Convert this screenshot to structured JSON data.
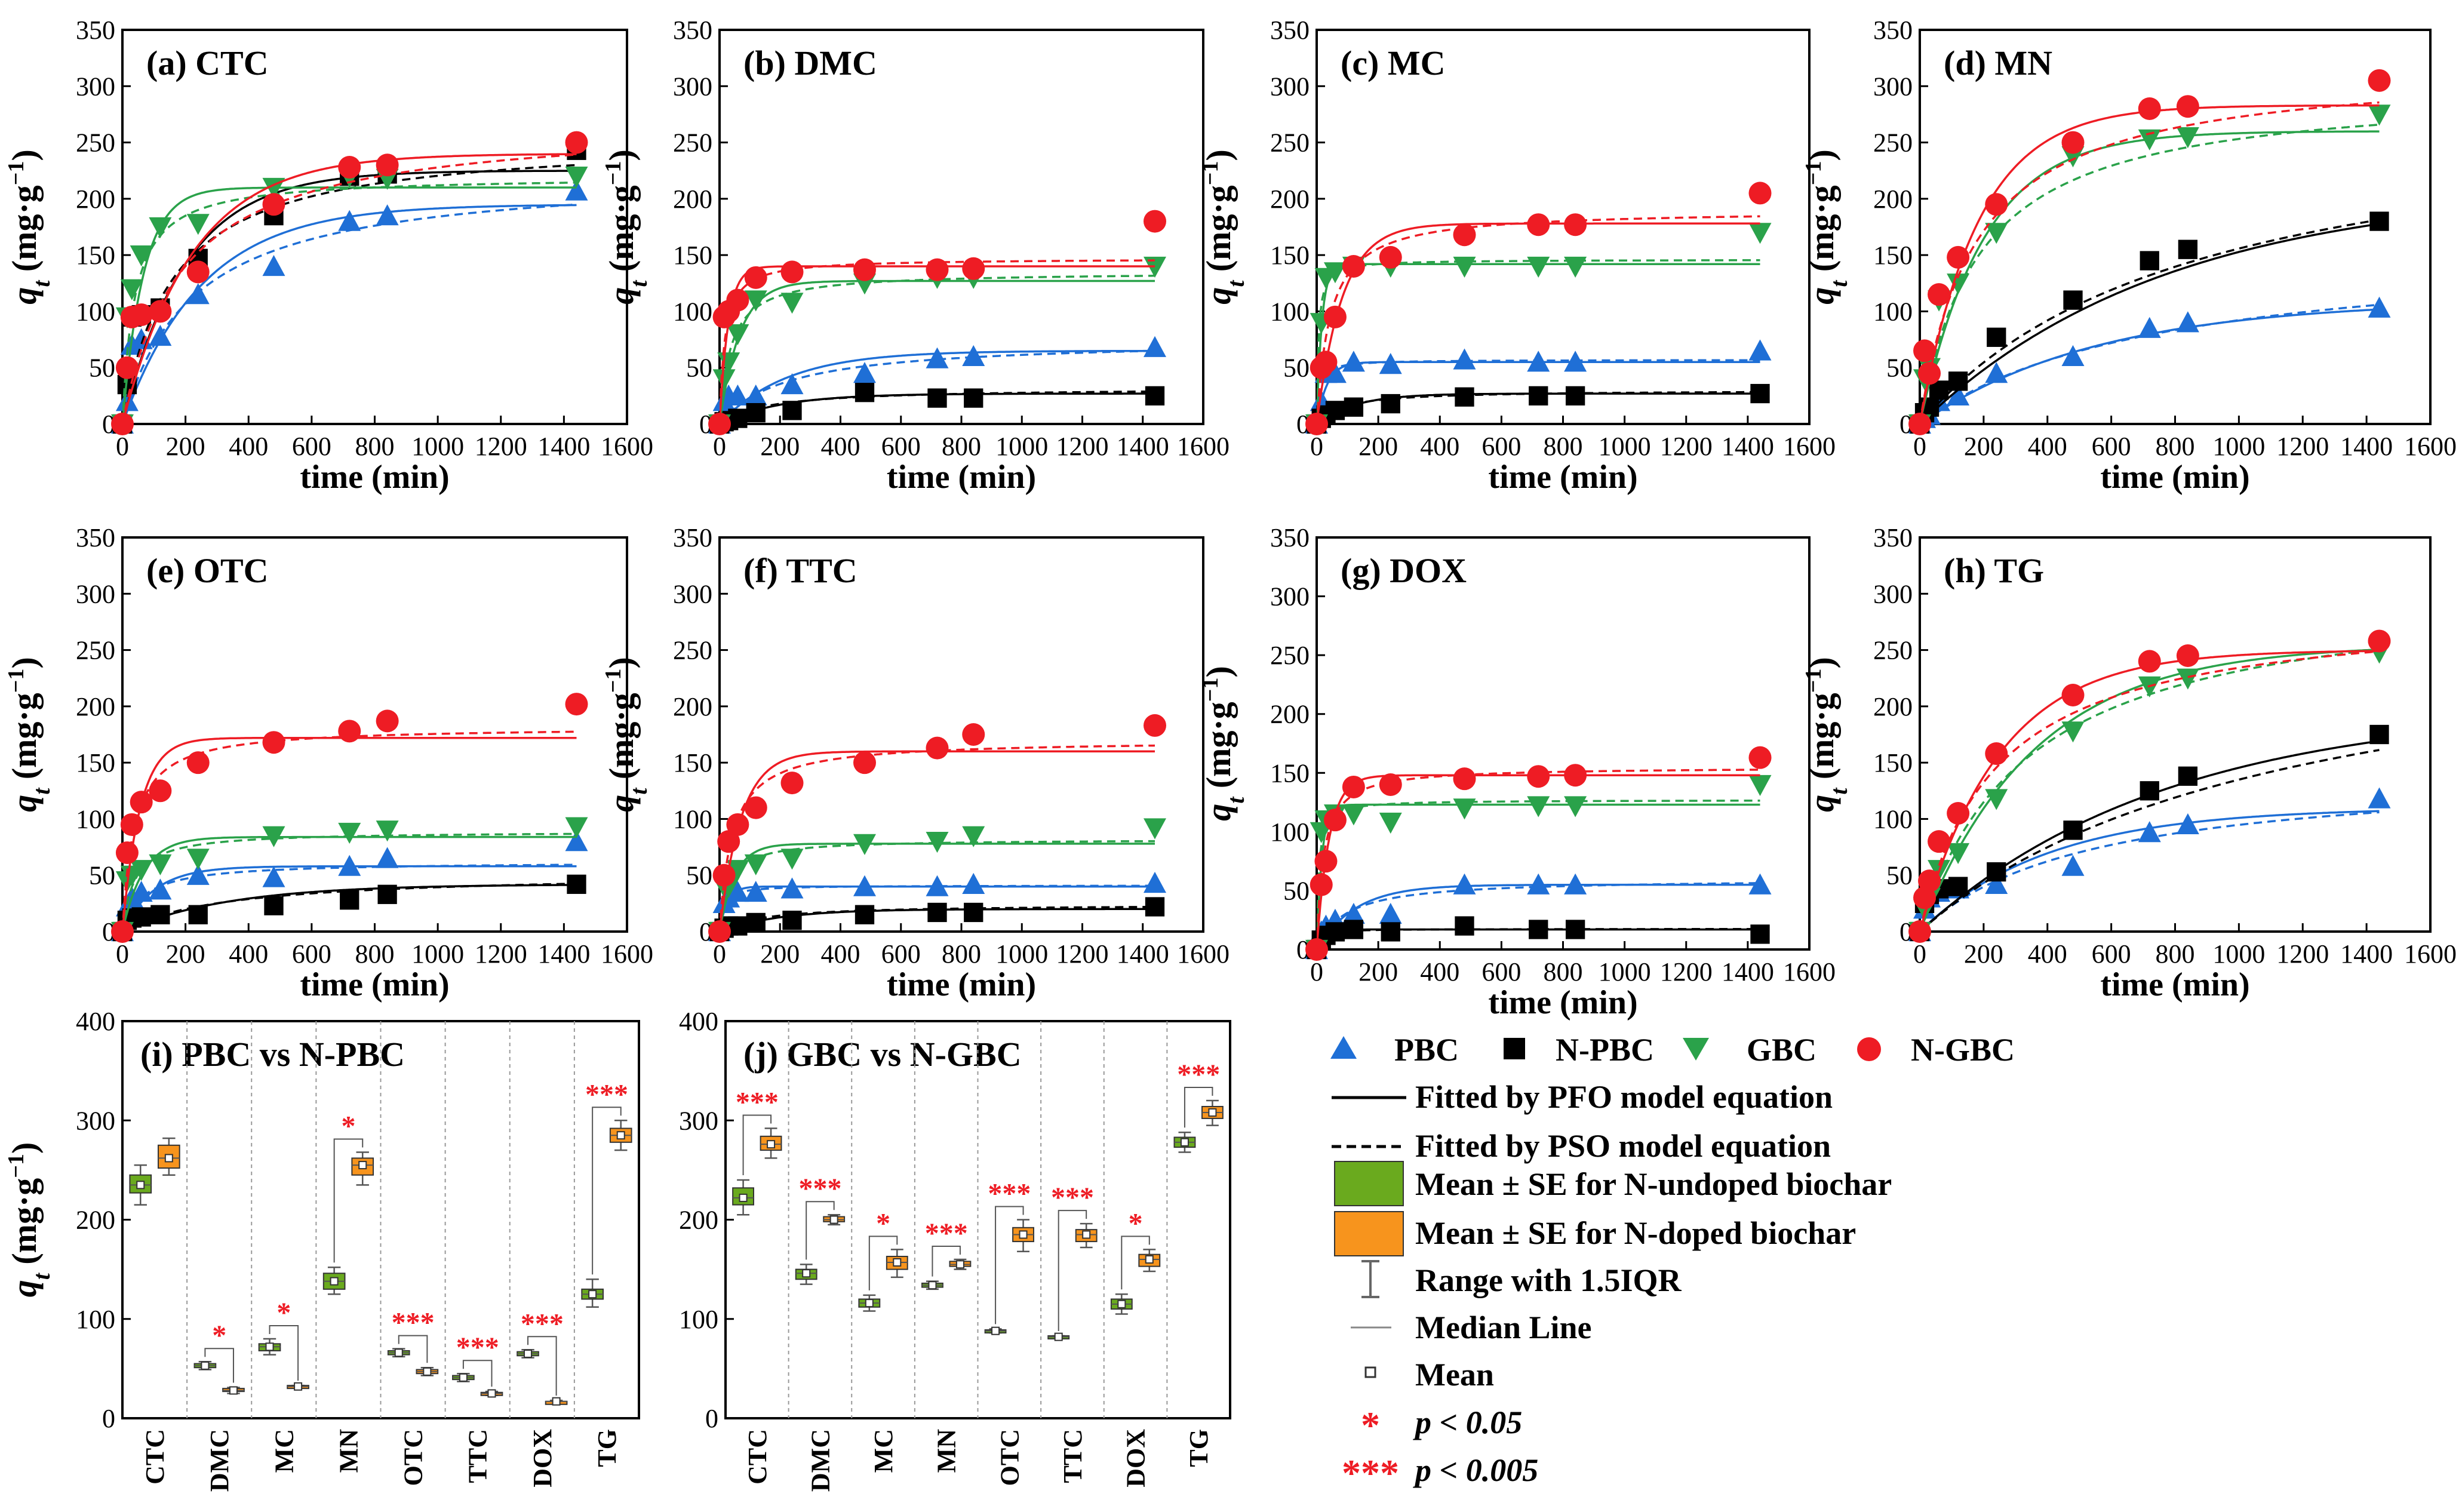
{
  "colors": {
    "PBC": "#1f6fd6",
    "N-PBC": "#000000",
    "GBC": "#2aa24a",
    "N-GBC": "#ee1c24",
    "box_undoped": "#6aaa1e",
    "box_doped": "#f7941d",
    "sig": "#ee1c24"
  },
  "kinetic": {
    "time": [
      0,
      15,
      30,
      60,
      120,
      240,
      480,
      720,
      840,
      1440
    ],
    "xlabel": "time (min)",
    "ylabel": "q",
    "ylabel_sub": "t",
    "ylabel_unit": "(mg·g",
    "ylabel_sup": "−1",
    "ylabel_close": ")",
    "xticks": [
      "0",
      "200",
      "400",
      "600",
      "800",
      "1000",
      "1200",
      "1400",
      "1600"
    ],
    "yticks": [
      "0",
      "50",
      "100",
      "150",
      "200",
      "250",
      "300",
      "350"
    ]
  },
  "chart_data": [
    {
      "type": "scatter",
      "title": "(a) CTC",
      "xlim": [
        0,
        1600
      ],
      "ylim": [
        0,
        350
      ],
      "series": [
        {
          "name": "PBC",
          "values": [
            0,
            20,
            70,
            75,
            78,
            115,
            140,
            180,
            185,
            207
          ],
          "pfo": [
            195,
            0.004
          ],
          "pso": [
            225,
            2e-05
          ]
        },
        {
          "name": "N-PBC",
          "values": [
            0,
            35,
            95,
            97,
            103,
            147,
            185,
            220,
            222,
            243
          ],
          "pfo": [
            225,
            0.005
          ],
          "pso": [
            255,
            2.5e-05
          ]
        },
        {
          "name": "GBC",
          "values": [
            0,
            95,
            120,
            150,
            175,
            178,
            210,
            220,
            218,
            220
          ],
          "pfo": [
            210,
            0.015
          ],
          "pso": [
            220,
            0.00012
          ]
        },
        {
          "name": "N-GBC",
          "values": [
            0,
            50,
            95,
            97,
            100,
            135,
            195,
            228,
            230,
            250
          ],
          "pfo": [
            240,
            0.0045
          ],
          "pso": [
            270,
            2e-05
          ]
        }
      ]
    },
    {
      "type": "scatter",
      "title": "(b)  DMC",
      "xlim": [
        0,
        1600
      ],
      "ylim": [
        0,
        350
      ],
      "series": [
        {
          "name": "PBC",
          "values": [
            0,
            20,
            25,
            25,
            25,
            35,
            45,
            58,
            60,
            68
          ],
          "pfo": [
            65,
            0.0045
          ],
          "pso": [
            75,
            6e-05
          ]
        },
        {
          "name": "N-PBC",
          "values": [
            0,
            2,
            3,
            5,
            10,
            12,
            28,
            23,
            23,
            25
          ],
          "pfo": [
            27,
            0.005
          ],
          "pso": [
            32,
            0.0002
          ]
        },
        {
          "name": "GBC",
          "values": [
            0,
            40,
            55,
            80,
            110,
            108,
            125,
            130,
            130,
            140
          ],
          "pfo": [
            127,
            0.015
          ],
          "pso": [
            135,
            0.0002
          ]
        },
        {
          "name": "N-GBC",
          "values": [
            0,
            95,
            100,
            110,
            130,
            135,
            137,
            137,
            138,
            180
          ],
          "pfo": [
            140,
            0.035
          ],
          "pso": [
            147,
            0.0004
          ]
        }
      ]
    },
    {
      "type": "scatter",
      "title": "(c)  MC",
      "xlim": [
        0,
        1600
      ],
      "ylim": [
        0,
        350
      ],
      "series": [
        {
          "name": "PBC",
          "values": [
            0,
            20,
            45,
            45,
            55,
            53,
            57,
            55,
            55,
            65
          ],
          "pfo": [
            55,
            0.03
          ],
          "pso": [
            57,
            0.002
          ]
        },
        {
          "name": "N-PBC",
          "values": [
            0,
            5,
            8,
            12,
            15,
            18,
            24,
            25,
            25,
            27
          ],
          "pfo": [
            27,
            0.008
          ],
          "pso": [
            30,
            0.0004
          ]
        },
        {
          "name": "GBC",
          "values": [
            0,
            90,
            130,
            135,
            140,
            140,
            140,
            140,
            140,
            170
          ],
          "pfo": [
            142,
            0.06
          ],
          "pso": [
            146,
            0.0012
          ]
        },
        {
          "name": "N-GBC",
          "values": [
            0,
            50,
            55,
            95,
            140,
            148,
            168,
            177,
            177,
            205
          ],
          "pfo": [
            178,
            0.012
          ],
          "pso": [
            190,
            0.00012
          ]
        }
      ]
    },
    {
      "type": "scatter",
      "title": "(d)  MN",
      "xlim": [
        0,
        1600
      ],
      "ylim": [
        0,
        350
      ],
      "series": [
        {
          "name": "PBC",
          "values": [
            0,
            5,
            8,
            20,
            25,
            45,
            60,
            85,
            90,
            103
          ],
          "pfo": [
            110,
            0.0018
          ],
          "pso": [
            160,
            8.5e-06
          ]
        },
        {
          "name": "N-PBC",
          "values": [
            0,
            10,
            15,
            30,
            38,
            77,
            110,
            145,
            155,
            180
          ],
          "pfo": [
            210,
            0.0013
          ],
          "pso": [
            290,
            4e-06
          ]
        },
        {
          "name": "GBC",
          "values": [
            0,
            40,
            50,
            110,
            125,
            170,
            238,
            253,
            255,
            275
          ],
          "pfo": [
            260,
            0.005
          ],
          "pso": [
            300,
            1.8e-05
          ]
        },
        {
          "name": "N-GBC",
          "values": [
            0,
            65,
            45,
            115,
            148,
            195,
            250,
            280,
            282,
            305
          ],
          "pfo": [
            283,
            0.0055
          ],
          "pso": [
            320,
            1.8e-05
          ]
        }
      ]
    },
    {
      "type": "scatter",
      "title": "(e)  OTC",
      "xlim": [
        0,
        1600
      ],
      "ylim": [
        0,
        350
      ],
      "series": [
        {
          "name": "PBC",
          "values": [
            0,
            22,
            30,
            35,
            37,
            50,
            48,
            58,
            65,
            80
          ],
          "pfo": [
            58,
            0.01
          ],
          "pso": [
            62,
            0.00025
          ]
        },
        {
          "name": "N-PBC",
          "values": [
            0,
            10,
            12,
            13,
            15,
            15,
            23,
            28,
            33,
            42
          ],
          "pfo": [
            42,
            0.003
          ],
          "pso": [
            52,
            6e-05
          ]
        },
        {
          "name": "GBC",
          "values": [
            0,
            45,
            50,
            55,
            60,
            65,
            85,
            88,
            90,
            93
          ],
          "pfo": [
            84,
            0.015
          ],
          "pso": [
            89,
            0.0003
          ]
        },
        {
          "name": "N-GBC",
          "values": [
            0,
            70,
            95,
            115,
            125,
            150,
            168,
            178,
            187,
            202
          ],
          "pfo": [
            172,
            0.018
          ],
          "pso": [
            182,
            0.00015
          ]
        }
      ]
    },
    {
      "type": "scatter",
      "title": "(f)  TTC",
      "xlim": [
        0,
        1600
      ],
      "ylim": [
        0,
        350
      ],
      "series": [
        {
          "name": "PBC",
          "values": [
            0,
            25,
            30,
            35,
            35,
            38,
            40,
            40,
            42,
            43
          ],
          "pfo": [
            40,
            0.04
          ],
          "pso": [
            41,
            0.002
          ]
        },
        {
          "name": "N-PBC",
          "values": [
            0,
            3,
            5,
            5,
            8,
            10,
            15,
            17,
            17,
            22
          ],
          "pfo": [
            20,
            0.005
          ],
          "pso": [
            24,
            0.0003
          ]
        },
        {
          "name": "GBC",
          "values": [
            0,
            40,
            40,
            55,
            60,
            65,
            78,
            80,
            85,
            92
          ],
          "pfo": [
            78,
            0.02
          ],
          "pso": [
            82,
            0.0004
          ]
        },
        {
          "name": "N-GBC",
          "values": [
            0,
            50,
            80,
            95,
            110,
            132,
            150,
            163,
            175,
            183
          ],
          "pfo": [
            160,
            0.014
          ],
          "pso": [
            170,
            0.00014
          ]
        }
      ]
    },
    {
      "type": "scatter",
      "title": "(g)  DOX",
      "xlim": [
        0,
        1600
      ],
      "ylim": [
        0,
        350
      ],
      "series": [
        {
          "name": "PBC",
          "values": [
            0,
            15,
            20,
            25,
            30,
            30,
            55,
            55,
            55,
            55
          ],
          "pfo": [
            55,
            0.008
          ],
          "pso": [
            60,
            0.00018
          ]
        },
        {
          "name": "N-PBC",
          "values": [
            0,
            8,
            12,
            15,
            17,
            15,
            20,
            17,
            17,
            13
          ],
          "pfo": [
            17,
            0.04
          ],
          "pso": [
            17.5,
            0.005
          ]
        },
        {
          "name": "GBC",
          "values": [
            0,
            100,
            110,
            115,
            115,
            108,
            120,
            122,
            122,
            140
          ],
          "pfo": [
            123,
            0.06
          ],
          "pso": [
            127,
            0.0012
          ]
        },
        {
          "name": "N-GBC",
          "values": [
            0,
            55,
            75,
            110,
            138,
            140,
            145,
            147,
            148,
            163
          ],
          "pfo": [
            148,
            0.025
          ],
          "pso": [
            155,
            0.0003
          ]
        }
      ]
    },
    {
      "type": "scatter",
      "title": "(h)  TG",
      "xlim": [
        0,
        1600
      ],
      "ylim": [
        0,
        350
      ],
      "series": [
        {
          "name": "PBC",
          "values": [
            0,
            20,
            30,
            35,
            38,
            42,
            58,
            88,
            95,
            118
          ],
          "pfo": [
            110,
            0.0025
          ],
          "pso": [
            145,
            1.3e-05
          ]
        },
        {
          "name": "N-PBC",
          "values": [
            0,
            25,
            33,
            38,
            40,
            53,
            90,
            125,
            138,
            175
          ],
          "pfo": [
            200,
            0.0013
          ],
          "pso": [
            290,
            3e-06
          ]
        },
        {
          "name": "GBC",
          "values": [
            0,
            20,
            30,
            55,
            70,
            118,
            178,
            218,
            225,
            248
          ],
          "pfo": [
            255,
            0.0028
          ],
          "pso": [
            310,
            9.5e-06
          ]
        },
        {
          "name": "N-GBC",
          "values": [
            0,
            30,
            45,
            80,
            105,
            158,
            210,
            240,
            245,
            258
          ],
          "pfo": [
            250,
            0.004
          ],
          "pso": [
            290,
            1.45e-05
          ]
        }
      ]
    },
    {
      "type": "box",
      "title": "(i) PBC vs N-PBC",
      "ylim": [
        0,
        400
      ],
      "categories": [
        "CTC",
        "DMC",
        "MC",
        "MN",
        "OTC",
        "TTC",
        "DOX",
        "TG"
      ],
      "undoped": [
        [
          215,
          227,
          235,
          245,
          255
        ],
        [
          49,
          51,
          53,
          55,
          57
        ],
        [
          64,
          68,
          72,
          75,
          80
        ],
        [
          125,
          130,
          138,
          146,
          152
        ],
        [
          62,
          64,
          66,
          68,
          70
        ],
        [
          37,
          39,
          41,
          43,
          45
        ],
        [
          61,
          63,
          65,
          67,
          69
        ],
        [
          112,
          120,
          125,
          130,
          140
        ]
      ],
      "doped": [
        [
          245,
          252,
          262,
          275,
          282
        ],
        [
          25,
          27,
          28,
          30,
          31
        ],
        [
          31,
          32,
          32,
          33,
          33
        ],
        [
          235,
          245,
          255,
          262,
          268
        ],
        [
          43,
          45,
          47,
          49,
          51
        ],
        [
          23,
          24,
          25,
          26,
          27
        ],
        [
          16,
          16,
          17,
          17,
          18
        ],
        [
          270,
          278,
          285,
          292,
          300
        ]
      ],
      "significance": [
        "",
        "*",
        "*",
        "*",
        "***",
        "***",
        "***",
        "***"
      ]
    },
    {
      "type": "box",
      "title": "(j) GBC vs N-GBC",
      "ylim": [
        0,
        400
      ],
      "categories": [
        "CTC",
        "DMC",
        "MC",
        "MN",
        "OTC",
        "TTC",
        "DOX",
        "TG"
      ],
      "undoped": [
        [
          205,
          215,
          222,
          232,
          240
        ],
        [
          135,
          140,
          146,
          150,
          155
        ],
        [
          108,
          112,
          116,
          120,
          124
        ],
        [
          130,
          132,
          134,
          136,
          138
        ],
        [
          86,
          87,
          88,
          89,
          90
        ],
        [
          81,
          82,
          82,
          83,
          83
        ],
        [
          105,
          110,
          115,
          120,
          125
        ],
        [
          268,
          273,
          278,
          283,
          288
        ]
      ],
      "doped": [
        [
          262,
          270,
          276,
          284,
          292
        ],
        [
          195,
          198,
          200,
          203,
          205
        ],
        [
          142,
          150,
          157,
          163,
          170
        ],
        [
          150,
          153,
          155,
          158,
          160
        ],
        [
          168,
          178,
          185,
          192,
          200
        ],
        [
          172,
          178,
          185,
          190,
          196
        ],
        [
          148,
          153,
          160,
          165,
          170
        ],
        [
          295,
          302,
          308,
          314,
          320
        ]
      ],
      "significance": [
        "***",
        "***",
        "*",
        "***",
        "***",
        "***",
        "*",
        "***"
      ]
    }
  ],
  "legend": {
    "markers": [
      "PBC",
      "N-PBC",
      "GBC",
      "N-GBC"
    ],
    "pfo": "Fitted by  PFO model equation",
    "pso": "Fitted by  PSO model equation",
    "undoped": "Mean ± SE for N-undoped biochar",
    "doped": "Mean ± SE for N-doped biochar",
    "range": "Range with 1.5IQR",
    "median": "Median Line",
    "mean": "Mean",
    "p1_sym": "*",
    "p1": "p < 0.05",
    "p2_sym": "***",
    "p2": "p < 0.005"
  }
}
